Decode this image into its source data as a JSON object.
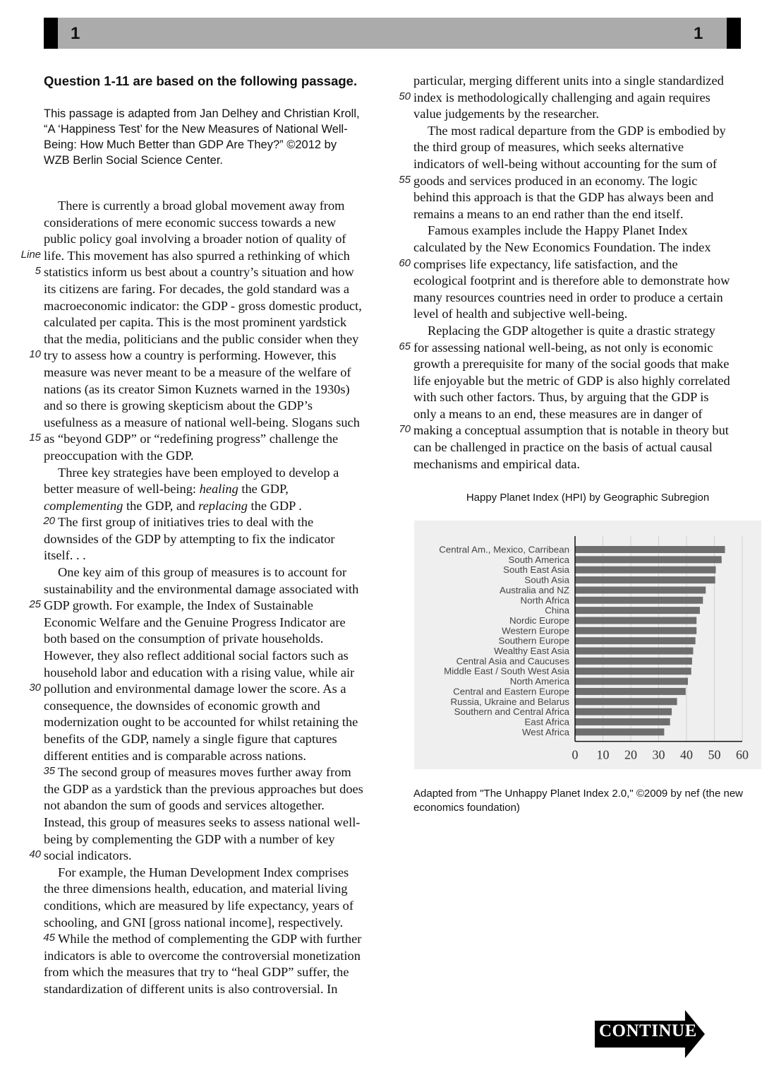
{
  "header": {
    "page_left": "1",
    "page_right": "1"
  },
  "question_heading": "Question 1-11 are based on the following passage.",
  "intro": [
    "This passage is adapted from Jan Delhey and Christian Kroll,",
    "“A ‘Happiness Test’ for the New Measures of National Well-",
    "Being: How Much Better than GDP Are They?” ©2012 by",
    "WZB Berlin Social Science Center."
  ],
  "line_label": "Line",
  "passage_left": [
    {
      "t": "There is currently a broad global movement away from",
      "i": 1
    },
    {
      "t": "considerations of mere economic success towards a new"
    },
    {
      "t": "public policy goal involving a broader notion of quality of"
    },
    {
      "t": "life. This movement has also spurred a rethinking of which",
      "label": "Line"
    },
    {
      "t": "statistics inform us best about a country’s situation and how",
      "n": "5"
    },
    {
      "t": "its citizens are faring. For decades, the gold standard was a"
    },
    {
      "t": "macroeconomic indicator: the GDP - gross domestic product,"
    },
    {
      "t": "calculated per capita. This is the most prominent yardstick"
    },
    {
      "t": "that the media, politicians and the public consider when they"
    },
    {
      "t": "try to assess how a country is performing. However, this",
      "n": "10"
    },
    {
      "t": "measure was never meant to be a measure of the welfare of"
    },
    {
      "t": "nations (as its creator Simon Kuznets warned in the 1930s)"
    },
    {
      "t": "and so there is growing skepticism about the GDP’s"
    },
    {
      "t": "usefulness as a measure of national well-being. Slogans such"
    },
    {
      "t": "as “beyond GDP” or “redefining progress” challenge the",
      "n": "15"
    },
    {
      "t": "preoccupation with the GDP."
    },
    {
      "t": "Three key strategies have been employed to develop a",
      "i": 1
    },
    {
      "seg": [
        {
          "t": "better measure of well-being: "
        },
        {
          "t": "healing",
          "em": 1
        },
        {
          "t": " the GDP,"
        }
      ]
    },
    {
      "seg": [
        {
          "t": "complementing",
          "em": 1
        },
        {
          "t": " the GDP, and "
        },
        {
          "t": "replacing",
          "em": 1
        },
        {
          "t": " the GDP ."
        }
      ]
    },
    {
      "t": "The first group of initiatives tries to deal with the",
      "i": 1,
      "n": "20"
    },
    {
      "t": "downsides of the GDP by attempting to fix the indicator"
    },
    {
      "t": "itself. . ."
    },
    {
      "t": "One key aim of this group of measures is to account for",
      "i": 1
    },
    {
      "t": "sustainability and the environmental damage associated with"
    },
    {
      "t": "GDP growth. For example, the Index of Sustainable",
      "n": "25"
    },
    {
      "t": "Economic Welfare and the Genuine Progress Indicator are"
    },
    {
      "t": "both based on the consumption of private households."
    },
    {
      "t": "However, they also reflect additional social factors such as"
    },
    {
      "t": "household labor and education with a rising value, while air"
    },
    {
      "t": "pollution and environmental damage lower the score. As a",
      "n": "30"
    },
    {
      "t": "consequence, the downsides of economic growth and"
    },
    {
      "t": "modernization ought to be accounted for whilst retaining the"
    },
    {
      "t": "benefits of the GDP, namely a single figure that captures"
    },
    {
      "t": "different entities and is comparable across nations."
    },
    {
      "t": "The second group of measures moves further away from",
      "i": 1,
      "n": "35"
    },
    {
      "t": "the GDP as a yardstick than the previous approaches but does"
    },
    {
      "t": "not abandon the sum of goods and services altogether."
    },
    {
      "t": "Instead, this group of measures seeks to assess national well-"
    },
    {
      "t": "being by complementing the GDP with a number of key"
    },
    {
      "t": "social indicators.",
      "n": "40"
    },
    {
      "t": "For example, the Human Development Index comprises",
      "i": 1
    },
    {
      "t": "the three dimensions health, education, and material living"
    },
    {
      "t": "conditions, which are measured by life expectancy, years of"
    },
    {
      "t": "schooling, and GNI [gross national income], respectively."
    },
    {
      "t": "While the method of complementing the GDP with further",
      "i": 1,
      "n": "45"
    },
    {
      "t": "indicators is able to overcome the controversial monetization"
    },
    {
      "t": "from which the measures that try to “heal GDP” suffer, the"
    },
    {
      "t": "standardization of different units is also controversial. In"
    }
  ],
  "passage_right": [
    {
      "t": "particular, merging different units into a single standardized"
    },
    {
      "t": "index is methodologically challenging and again requires",
      "n": "50"
    },
    {
      "t": "value judgements by the researcher."
    },
    {
      "t": "The most radical departure from the GDP is embodied by",
      "i": 1
    },
    {
      "t": "the third group of measures, which seeks alternative"
    },
    {
      "t": "indicators of well-being without accounting for the sum of"
    },
    {
      "t": "goods and services produced in an economy. The logic",
      "n": "55"
    },
    {
      "t": "behind this approach is that the GDP has always been and"
    },
    {
      "t": "remains a means to an end rather than the end itself."
    },
    {
      "t": "Famous examples include the Happy Planet Index",
      "i": 1
    },
    {
      "t": "calculated by the New Economics Foundation. The index"
    },
    {
      "t": "comprises life expectancy, life satisfaction, and the",
      "n": "60"
    },
    {
      "t": "ecological footprint and is therefore able to demonstrate how"
    },
    {
      "t": "many resources countries need in order to produce a certain"
    },
    {
      "t": "level of health and subjective well-being."
    },
    {
      "t": "Replacing the GDP altogether is quite a drastic strategy",
      "i": 1
    },
    {
      "t": "for assessing national well-being, as not only is economic",
      "n": "65"
    },
    {
      "t": "growth a prerequisite for many of the social goods that make"
    },
    {
      "t": "life enjoyable but the metric of GDP is also highly correlated"
    },
    {
      "t": "with such other factors. Thus, by arguing that the GDP is"
    },
    {
      "t": "only a means to an end, these measures are in danger of"
    },
    {
      "t": "making a conceptual assumption that is notable in theory but",
      "n": "70"
    },
    {
      "t": "can be challenged in practice on the basis of actual causal"
    },
    {
      "t": "mechanisms and empirical data."
    }
  ],
  "chart_data": {
    "type": "bar",
    "orientation": "horizontal",
    "title": "Happy Planet Index (HPI) by Geographic Subregion",
    "categories": [
      "Central Am., Mexico, Carribean",
      "South America",
      "South East Asia",
      "South Asia",
      "Australia and NZ",
      "North Africa",
      "China",
      "Nordic Europe",
      "Western Europe",
      "Southern Europe",
      "Wealthy East Asia",
      "Central Asia and Caucuses",
      "Middle East / South West Asia",
      "North America",
      "Central and Eastern Europe",
      "Russia, Ukraine and Belarus",
      "Southern and Central Africa",
      "East Africa",
      "West Africa"
    ],
    "values": [
      53.8,
      52.6,
      50.5,
      50.3,
      46.9,
      45.9,
      44.8,
      43.6,
      43.6,
      43.2,
      42.4,
      42.0,
      41.7,
      40.5,
      39.7,
      36.6,
      34.7,
      34.1,
      32.0
    ],
    "xlim": [
      0,
      60
    ],
    "xticks": [
      "0",
      "10",
      "20",
      "30",
      "40",
      "50",
      "60"
    ],
    "grid": true,
    "bar_color": "#6e6e6e",
    "background": "#efefef"
  },
  "source": "Adapted from \"The Unhappy Planet Index 2.0,\" ©2009 by nef (the new economics foundation)",
  "continue_label": "CONTINUE"
}
